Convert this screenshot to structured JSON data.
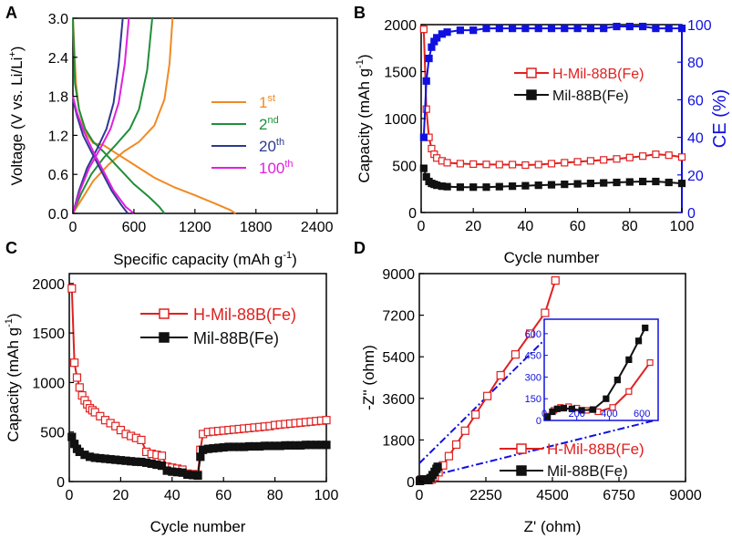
{
  "panel_labels": {
    "a": "A",
    "b": "B",
    "c": "C",
    "d": "D"
  },
  "chart_data": [
    {
      "panel": "A",
      "type": "line",
      "xlabel": "Specific capacity (mAh g",
      "xlabel_sup": "-1",
      "xlabel_end": ")",
      "ylabel": "Voltage (V vs. Li/Li",
      "ylabel_sup": "+",
      "ylabel_end": ")",
      "xlim": [
        0,
        2600
      ],
      "ylim": [
        0,
        3.0
      ],
      "xticks": [
        "0",
        "600",
        "1200",
        "1800",
        "2400"
      ],
      "yticks": [
        "0.0",
        "0.6",
        "1.2",
        "1.8",
        "2.4",
        "3.0"
      ],
      "legend": [
        {
          "base": "1",
          "sup": "st",
          "color": "#f08a24"
        },
        {
          "base": "2",
          "sup": "nd",
          "color": "#1f8f3a"
        },
        {
          "base": "20",
          "sup": "th",
          "color": "#2b3a8f"
        },
        {
          "base": "100",
          "sup": "th",
          "color": "#e020e0"
        }
      ],
      "series": [
        {
          "name": "1st",
          "color": "#f08a24",
          "discharge": [
            [
              0,
              3.0
            ],
            [
              30,
              2.0
            ],
            [
              60,
              1.6
            ],
            [
              120,
              1.25
            ],
            [
              200,
              1.08
            ],
            [
              300,
              1.05
            ],
            [
              450,
              0.9
            ],
            [
              600,
              0.75
            ],
            [
              800,
              0.55
            ],
            [
              1000,
              0.4
            ],
            [
              1200,
              0.28
            ],
            [
              1400,
              0.15
            ],
            [
              1550,
              0.05
            ],
            [
              1600,
              0.0
            ]
          ],
          "charge": [
            [
              0,
              0.0
            ],
            [
              100,
              0.25
            ],
            [
              200,
              0.5
            ],
            [
              350,
              0.75
            ],
            [
              500,
              0.95
            ],
            [
              650,
              1.1
            ],
            [
              800,
              1.35
            ],
            [
              900,
              1.75
            ],
            [
              950,
              2.3
            ],
            [
              980,
              3.0
            ]
          ]
        },
        {
          "name": "2nd",
          "color": "#1f8f3a",
          "discharge": [
            [
              0,
              3.0
            ],
            [
              20,
              2.0
            ],
            [
              60,
              1.6
            ],
            [
              120,
              1.3
            ],
            [
              200,
              1.1
            ],
            [
              300,
              0.95
            ],
            [
              450,
              0.7
            ],
            [
              600,
              0.45
            ],
            [
              750,
              0.25
            ],
            [
              850,
              0.1
            ],
            [
              900,
              0.0
            ]
          ],
          "charge": [
            [
              0,
              0.0
            ],
            [
              80,
              0.3
            ],
            [
              180,
              0.6
            ],
            [
              300,
              0.85
            ],
            [
              420,
              1.05
            ],
            [
              560,
              1.3
            ],
            [
              650,
              1.6
            ],
            [
              730,
              2.2
            ],
            [
              780,
              3.0
            ]
          ]
        },
        {
          "name": "20th",
          "color": "#2b3a8f",
          "discharge": [
            [
              0,
              1.75
            ],
            [
              40,
              1.5
            ],
            [
              100,
              1.2
            ],
            [
              180,
              0.95
            ],
            [
              280,
              0.65
            ],
            [
              380,
              0.35
            ],
            [
              480,
              0.12
            ],
            [
              540,
              0.0
            ]
          ],
          "charge": [
            [
              0,
              0.0
            ],
            [
              60,
              0.35
            ],
            [
              140,
              0.7
            ],
            [
              240,
              1.0
            ],
            [
              330,
              1.3
            ],
            [
              400,
              1.7
            ],
            [
              450,
              2.3
            ],
            [
              490,
              3.0
            ]
          ]
        },
        {
          "name": "100th",
          "color": "#e020e0",
          "discharge": [
            [
              0,
              1.8
            ],
            [
              40,
              1.55
            ],
            [
              110,
              1.25
            ],
            [
              200,
              0.95
            ],
            [
              300,
              0.65
            ],
            [
              400,
              0.35
            ],
            [
              520,
              0.1
            ],
            [
              600,
              0.0
            ]
          ],
          "charge": [
            [
              0,
              0.0
            ],
            [
              70,
              0.35
            ],
            [
              160,
              0.7
            ],
            [
              270,
              1.0
            ],
            [
              370,
              1.3
            ],
            [
              450,
              1.7
            ],
            [
              510,
              2.3
            ],
            [
              550,
              3.0
            ]
          ]
        }
      ]
    },
    {
      "panel": "B",
      "type": "scatter",
      "xlabel": "Cycle number",
      "ylabel": "Capacity (mAh g",
      "ylabel_sup": "-1",
      "ylabel_end": ")",
      "y2label": "CE (%)",
      "xlim": [
        0,
        100
      ],
      "ylim": [
        0,
        2000
      ],
      "y2lim": [
        0,
        100
      ],
      "xticks": [
        "0",
        "20",
        "40",
        "60",
        "80",
        "100"
      ],
      "yticks": [
        "0",
        "500",
        "1000",
        "1500",
        "2000"
      ],
      "y2ticks": [
        "0",
        "20",
        "40",
        "60",
        "80",
        "100"
      ],
      "series": [
        {
          "name": "H-Mil-88B(Fe)",
          "color": "#e02020",
          "marker": "open-square",
          "x": [
            1,
            2,
            3,
            4,
            5,
            6,
            8,
            10,
            15,
            20,
            25,
            30,
            35,
            40,
            45,
            50,
            55,
            60,
            65,
            70,
            75,
            80,
            85,
            90,
            95,
            100
          ],
          "values": [
            1950,
            1100,
            800,
            680,
            620,
            580,
            550,
            530,
            520,
            515,
            512,
            510,
            510,
            505,
            510,
            520,
            530,
            540,
            550,
            560,
            570,
            585,
            600,
            620,
            610,
            590
          ]
        },
        {
          "name": "Mil-88B(Fe)",
          "color": "#111111",
          "marker": "filled-square",
          "x": [
            1,
            2,
            3,
            4,
            5,
            6,
            8,
            10,
            15,
            20,
            25,
            30,
            35,
            40,
            45,
            50,
            55,
            60,
            65,
            70,
            75,
            80,
            85,
            90,
            95,
            100
          ],
          "values": [
            470,
            380,
            330,
            310,
            300,
            290,
            280,
            275,
            270,
            270,
            270,
            275,
            280,
            285,
            290,
            295,
            300,
            305,
            310,
            315,
            320,
            325,
            330,
            330,
            320,
            310
          ]
        },
        {
          "name": "CE",
          "color": "#1010e0",
          "marker": "filled-square",
          "axis": "y2",
          "x": [
            1,
            2,
            3,
            4,
            5,
            6,
            8,
            10,
            15,
            20,
            25,
            30,
            35,
            40,
            45,
            50,
            55,
            60,
            65,
            70,
            75,
            80,
            85,
            90,
            95,
            100
          ],
          "values": [
            40,
            70,
            82,
            88,
            91,
            93,
            95,
            96,
            97,
            97,
            98,
            98,
            98,
            98,
            98,
            98,
            98,
            98,
            98,
            98,
            99,
            99,
            99,
            98,
            98,
            98
          ]
        }
      ]
    },
    {
      "panel": "C",
      "type": "line",
      "xlabel": "Cycle number",
      "ylabel": "Capacity (mAh g",
      "ylabel_sup": "-1",
      "ylabel_end": ")",
      "xlim": [
        0,
        100
      ],
      "ylim": [
        0,
        2100
      ],
      "xticks": [
        "0",
        "20",
        "40",
        "60",
        "80",
        "100"
      ],
      "yticks": [
        "0",
        "500",
        "1000",
        "1500",
        "2000"
      ],
      "series": [
        {
          "name": "H-Mil-88B(Fe)",
          "color": "#e02020",
          "marker": "open-square",
          "x": [
            1,
            2,
            3,
            4,
            5,
            6,
            7,
            8,
            9,
            10,
            12,
            14,
            16,
            18,
            20,
            22,
            24,
            26,
            28,
            30,
            32,
            34,
            36,
            38,
            40,
            42,
            44,
            46,
            48,
            50,
            51,
            52,
            54,
            56,
            58,
            60,
            62,
            64,
            66,
            68,
            70,
            72,
            74,
            76,
            78,
            80,
            82,
            84,
            86,
            88,
            90,
            92,
            94,
            96,
            98,
            100
          ],
          "values": [
            1950,
            1200,
            1050,
            950,
            870,
            820,
            780,
            740,
            720,
            700,
            660,
            620,
            590,
            560,
            520,
            480,
            460,
            440,
            420,
            300,
            280,
            270,
            260,
            150,
            140,
            130,
            120,
            80,
            75,
            70,
            320,
            480,
            500,
            505,
            510,
            515,
            520,
            525,
            530,
            535,
            540,
            545,
            550,
            555,
            560,
            570,
            575,
            580,
            585,
            590,
            595,
            600,
            605,
            610,
            615,
            620
          ]
        },
        {
          "name": "Mil-88B(Fe)",
          "color": "#111111",
          "marker": "filled-square",
          "x": [
            1,
            2,
            3,
            4,
            6,
            8,
            10,
            12,
            14,
            16,
            18,
            20,
            22,
            24,
            26,
            28,
            30,
            32,
            34,
            36,
            38,
            40,
            42,
            44,
            46,
            48,
            50,
            51,
            52,
            54,
            56,
            58,
            60,
            62,
            64,
            66,
            68,
            70,
            72,
            74,
            76,
            78,
            80,
            82,
            84,
            86,
            88,
            90,
            92,
            94,
            96,
            98,
            100
          ],
          "values": [
            450,
            380,
            330,
            300,
            270,
            250,
            240,
            235,
            230,
            225,
            220,
            215,
            210,
            205,
            200,
            198,
            190,
            180,
            170,
            160,
            110,
            100,
            95,
            90,
            70,
            65,
            60,
            250,
            320,
            330,
            335,
            340,
            345,
            350,
            350,
            350,
            350,
            355,
            355,
            355,
            360,
            360,
            360,
            360,
            365,
            365,
            365,
            365,
            370,
            370,
            370,
            370,
            370
          ]
        }
      ]
    },
    {
      "panel": "D",
      "type": "scatter",
      "xlabel": "Z' (ohm)",
      "ylabel": "-Z'' (ohm)",
      "xlim": [
        0,
        9000
      ],
      "ylim": [
        0,
        9000
      ],
      "xticks": [
        "0",
        "2250",
        "4500",
        "6750",
        "9000"
      ],
      "yticks": [
        "0",
        "1800",
        "3600",
        "5400",
        "7200",
        "9000"
      ],
      "inset": {
        "xticks": [
          "0",
          "200",
          "400",
          "600"
        ],
        "yticks": [
          "0",
          "150",
          "300",
          "450",
          "600"
        ],
        "xlim": [
          0,
          700
        ],
        "ylim": [
          0,
          700
        ]
      },
      "series": [
        {
          "name": "H-Mil-88B(Fe)",
          "color": "#e02020",
          "marker": "open-square",
          "x": [
            20,
            60,
            100,
            150,
            200,
            260,
            330,
            420,
            520,
            650,
            800,
            1000,
            1250,
            1550,
            1900,
            2300,
            2750,
            3250,
            3750,
            4250,
            4600
          ],
          "values": [
            30,
            70,
            90,
            95,
            85,
            70,
            60,
            90,
            200,
            400,
            700,
            1100,
            1600,
            2200,
            2900,
            3700,
            4600,
            5500,
            6400,
            7300,
            8700
          ]
        },
        {
          "name": "Mil-88B(Fe)",
          "color": "#111111",
          "marker": "filled-square",
          "x": [
            20,
            50,
            80,
            120,
            170,
            230,
            300,
            380,
            450,
            520,
            580,
            620
          ],
          "values": [
            25,
            60,
            80,
            85,
            80,
            70,
            75,
            150,
            280,
            420,
            550,
            640
          ]
        }
      ]
    }
  ]
}
